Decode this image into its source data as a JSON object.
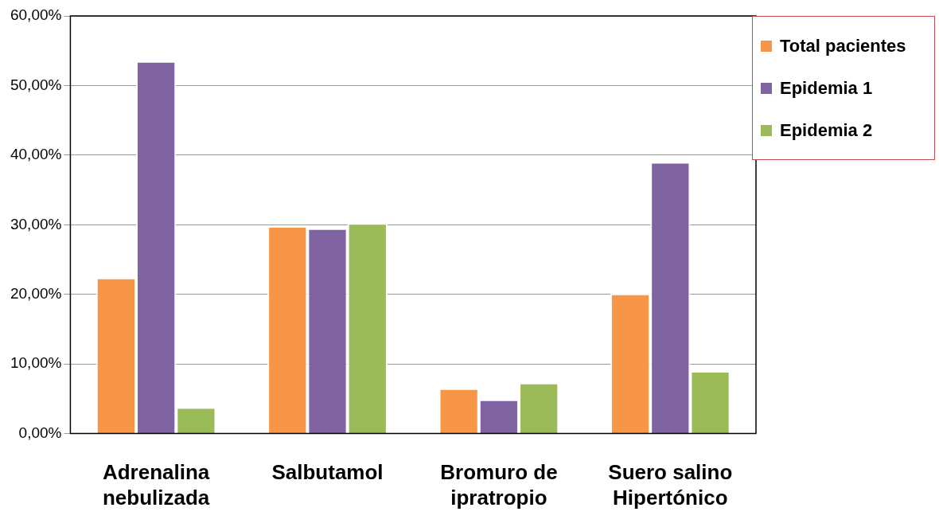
{
  "chart_data": {
    "type": "bar",
    "categories": [
      "Adrenalina\nnebulizada",
      "Salbutamol",
      "Bromuro de\nipratropio",
      "Suero salino\nHipertónico"
    ],
    "series": [
      {
        "name": "Total pacientes",
        "color": "#f79646",
        "values": [
          22.4,
          29.8,
          6.5,
          20.1
        ]
      },
      {
        "name": "Epidemia 1",
        "color": "#8064a2",
        "values": [
          53.5,
          29.5,
          4.9,
          39.0
        ]
      },
      {
        "name": "Epidemia 2",
        "color": "#9bbb59",
        "values": [
          3.8,
          30.2,
          7.3,
          9.0
        ]
      }
    ],
    "ylim": [
      0,
      60
    ],
    "yticks": [
      {
        "value": 0,
        "label": "0,00%"
      },
      {
        "value": 10,
        "label": "10,00%"
      },
      {
        "value": 20,
        "label": "20,00%"
      },
      {
        "value": 30,
        "label": "30,00%"
      },
      {
        "value": 40,
        "label": "40,00%"
      },
      {
        "value": 50,
        "label": "50,00%"
      },
      {
        "value": 60,
        "label": "60,00%"
      }
    ],
    "grid": "y",
    "legend": "top right"
  }
}
